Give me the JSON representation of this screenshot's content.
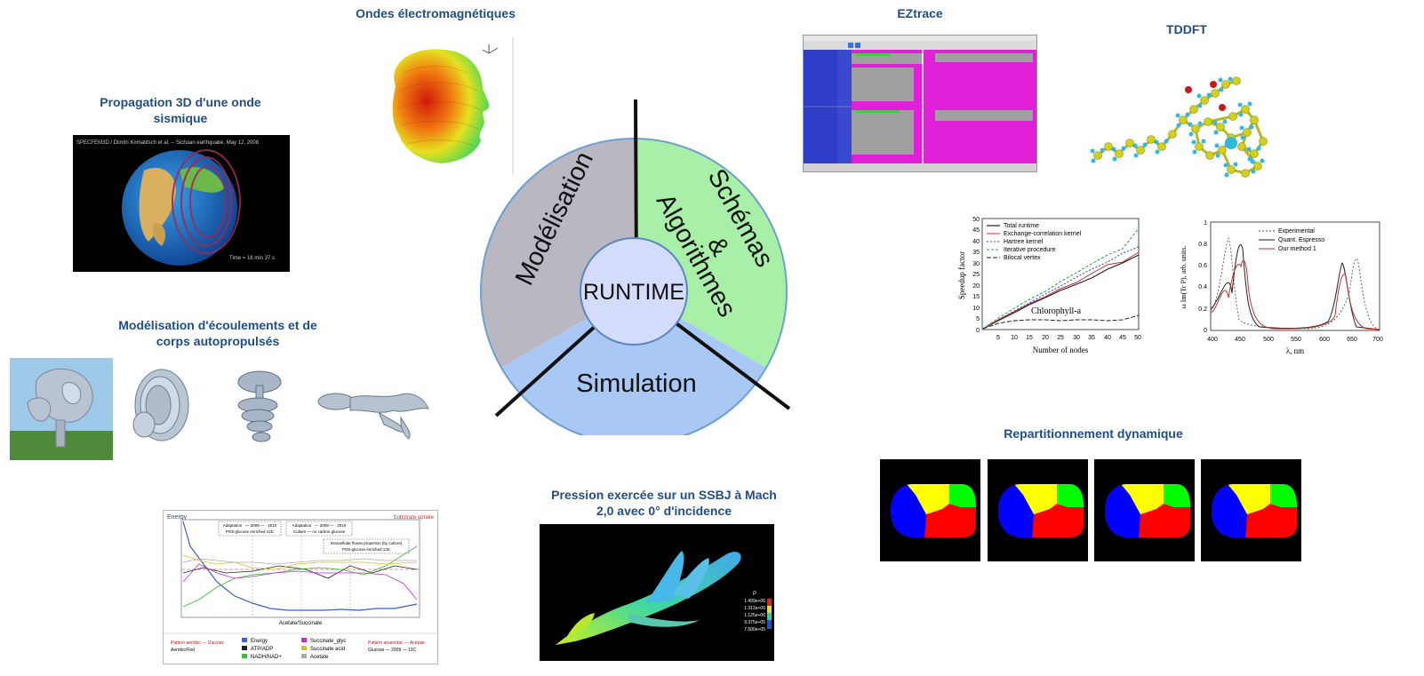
{
  "titles": {
    "ondes": "Ondes électromagnétiques",
    "propagation": "Propagation 3D d'une onde sismique",
    "modelisation_ecoulements": "Modélisation d'écoulements et de corps autopropulsés",
    "eztrace": "EZtrace",
    "tddft": "TDDFT",
    "pression": "Pression exercée sur un SSBJ à Mach 2,0 avec 0° d'incidence",
    "repartitionnement": "Repartitionnement dynamique"
  },
  "wheel": {
    "center": "RUNTIME",
    "modelisation": "Modélisation",
    "schemas": "Schémas",
    "amp": "&",
    "algorithmes": "Algorithmes",
    "simulation": "Simulation",
    "colors": {
      "modelisation": "#b8b7c2",
      "schemas": "#a8f0a8",
      "simulation": "#a9c8f5",
      "center": "#d4dcfb"
    }
  },
  "seismic": {
    "caption": "SPECFEM3D / Dimitri Komatitsch et al. -- Sichuan earthquake, May 12, 2008",
    "time": "Time = 16 min 37 s"
  },
  "speedup_chart": {
    "ylabel": "Speedup factor",
    "xlabel": "Number of nodes",
    "annotation": "Chlorophyll-a",
    "xticks": [
      "5",
      "10",
      "15",
      "20",
      "25",
      "30",
      "35",
      "40",
      "45",
      "50"
    ],
    "yticks": [
      "0",
      "5",
      "10",
      "15",
      "20",
      "25",
      "30",
      "35",
      "40",
      "45",
      "50"
    ],
    "legend": [
      "Total runtime",
      "Exchange-correlation kernel",
      "Hartree kernel",
      "Iterative procedure",
      "Bilocal vertex"
    ]
  },
  "spectrum_chart": {
    "ylabel": "ω Im(Tr P), arb. units.",
    "xlabel": "λ, nm",
    "xticks": [
      "400",
      "450",
      "500",
      "550",
      "600",
      "650",
      "700"
    ],
    "yticks": [
      "0",
      "0.2",
      "0.4",
      "0.6",
      "0.8",
      "1"
    ],
    "legend": [
      "Experimental",
      "Quant. Espresso",
      "Our method 1"
    ]
  },
  "metabolism_chart": {
    "left_axis_label": "Energy",
    "right_axis_label": "Substrate uptake",
    "box1_line1": "Adaptation   — 2009 —   2010",
    "box1_line2": "PG5-glucose enriched 13C",
    "box2_line1": "Adaptation   — 2009 —   2010",
    "box2_line2": "Culture — no carbon glucose",
    "box3_line1": "Intracellular fluxes projection (by culture)",
    "box3_line2": "PG5-glucose enriched 13C",
    "xaxis_label": "Acetate/Succinate",
    "legend": [
      "Energy",
      "ATP/ADP",
      "NADH/NAD+",
      "Succinate_glyc",
      "Succinate acid",
      "Acetate"
    ],
    "footer_left_1": "Pattern aerobic — Glucose",
    "footer_left_2": "Aerobic/Fed",
    "footer_right_1": "Pattern anaerobic — Acetate",
    "footer_right_2": "Glucose — 2009 — 13C"
  },
  "ssbj_colorbar": {
    "label": "P",
    "ticks": [
      "1.499e+06",
      "1.312e+06",
      "1.125e+06",
      "9.375e+05",
      "7.500e+05"
    ]
  }
}
